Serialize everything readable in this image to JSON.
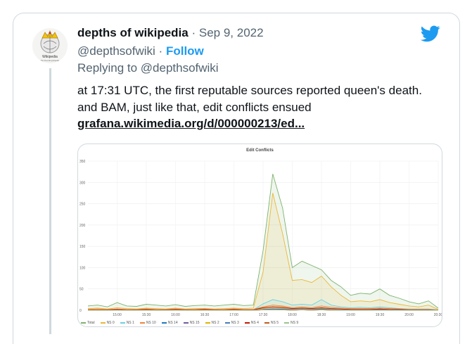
{
  "tweet": {
    "author_name": "depths of wikipedia",
    "date": "· Sep 9, 2022",
    "handle": "@depthsofwiki",
    "separator": "·",
    "follow_label": "Follow",
    "replying_to": "Replying to @depthsofwiki",
    "text": "at 17:31 UTC, the first reputable sources reported queen's death. and BAM, just like that, edit conflicts ensued",
    "link": "grafana.wikimedia.org/d/000000213/ed..."
  },
  "avatar": {
    "label": "Wikipedia",
    "sublabel": "The Free Encyclopedia"
  },
  "icons": {
    "brand": "twitter-bird-icon"
  },
  "colors": {
    "accent": "#1d9bf0",
    "total": "#7eb26d",
    "ns0": "#eab839",
    "ns1": "#6ed0e0",
    "ns10": "#ef843c",
    "ns14": "#1f78c1",
    "ns15": "#705da0",
    "ns2": "#e0b400",
    "ns3": "#447ebc",
    "ns4": "#bf1b00",
    "ns5": "#c15c17",
    "ns9": "#9ac48a"
  },
  "chart_data": {
    "type": "area",
    "title": "Edit Conflicts",
    "x_tick_labels": [
      "15:00",
      "15:30",
      "16:00",
      "16:30",
      "17:00",
      "17:30",
      "18:00",
      "18:30",
      "19:00",
      "19:30",
      "20:00",
      "20:30"
    ],
    "y_tick_labels": [
      "0",
      "50",
      "100",
      "150",
      "200",
      "250",
      "300",
      "350"
    ],
    "ylim": [
      0,
      350
    ],
    "x": [
      "14:30",
      "14:40",
      "14:50",
      "15:00",
      "15:10",
      "15:20",
      "15:30",
      "15:40",
      "15:50",
      "16:00",
      "16:10",
      "16:20",
      "16:30",
      "16:40",
      "16:50",
      "17:00",
      "17:10",
      "17:20",
      "17:30",
      "17:40",
      "17:50",
      "18:00",
      "18:10",
      "18:20",
      "18:30",
      "18:40",
      "18:50",
      "19:00",
      "19:10",
      "19:20",
      "19:30",
      "19:40",
      "19:50",
      "20:00",
      "20:10",
      "20:20",
      "20:30"
    ],
    "series": [
      {
        "name": "Total",
        "color": "#7eb26d",
        "values": [
          10,
          12,
          8,
          18,
          10,
          9,
          14,
          12,
          10,
          13,
          9,
          11,
          12,
          10,
          12,
          14,
          11,
          12,
          140,
          320,
          240,
          100,
          115,
          105,
          95,
          70,
          55,
          35,
          40,
          38,
          50,
          35,
          28,
          20,
          15,
          22,
          5
        ]
      },
      {
        "name": "NS 0",
        "color": "#eab839",
        "values": [
          4,
          5,
          3,
          6,
          4,
          3,
          5,
          4,
          3,
          5,
          3,
          4,
          4,
          3,
          4,
          5,
          4,
          5,
          90,
          275,
          180,
          70,
          72,
          65,
          80,
          55,
          35,
          20,
          22,
          20,
          25,
          18,
          14,
          10,
          8,
          12,
          2
        ]
      },
      {
        "name": "NS 1",
        "color": "#6ed0e0",
        "values": [
          1,
          1,
          1,
          2,
          1,
          1,
          2,
          1,
          1,
          2,
          1,
          1,
          2,
          1,
          1,
          2,
          1,
          1,
          15,
          25,
          20,
          12,
          14,
          12,
          25,
          12,
          8,
          6,
          7,
          6,
          8,
          6,
          4,
          3,
          3,
          3,
          1
        ]
      },
      {
        "name": "NS 10",
        "color": "#ef843c",
        "values": [
          2,
          3,
          2,
          3,
          2,
          2,
          3,
          2,
          2,
          3,
          2,
          2,
          3,
          2,
          2,
          3,
          2,
          2,
          8,
          12,
          10,
          6,
          8,
          6,
          10,
          7,
          5,
          4,
          4,
          4,
          5,
          4,
          3,
          2,
          2,
          2,
          1
        ]
      },
      {
        "name": "NS 14",
        "color": "#1f78c1",
        "values": [
          0,
          1,
          0,
          1,
          0,
          0,
          1,
          0,
          0,
          1,
          0,
          0,
          1,
          0,
          0,
          1,
          0,
          0,
          2,
          3,
          2,
          1,
          2,
          1,
          2,
          1,
          1,
          1,
          1,
          1,
          1,
          1,
          0,
          0,
          0,
          0,
          0
        ]
      },
      {
        "name": "NS 15",
        "color": "#705da0",
        "values": [
          0,
          0,
          0,
          0,
          0,
          0,
          0,
          0,
          0,
          0,
          0,
          0,
          0,
          0,
          0,
          0,
          0,
          0,
          1,
          1,
          1,
          0,
          1,
          0,
          1,
          0,
          0,
          0,
          0,
          0,
          0,
          0,
          0,
          0,
          0,
          0,
          0
        ]
      },
      {
        "name": "NS 2",
        "color": "#e0b400",
        "values": [
          1,
          1,
          1,
          1,
          1,
          1,
          1,
          1,
          1,
          1,
          1,
          1,
          1,
          1,
          1,
          1,
          1,
          1,
          5,
          8,
          6,
          4,
          5,
          4,
          5,
          4,
          3,
          2,
          2,
          2,
          3,
          2,
          2,
          1,
          1,
          1,
          0
        ]
      },
      {
        "name": "NS 3",
        "color": "#447ebc",
        "values": [
          0,
          0,
          0,
          1,
          0,
          0,
          1,
          0,
          0,
          1,
          0,
          0,
          1,
          0,
          0,
          1,
          0,
          0,
          2,
          3,
          3,
          2,
          2,
          2,
          3,
          2,
          1,
          1,
          1,
          1,
          2,
          1,
          1,
          1,
          1,
          1,
          0
        ]
      },
      {
        "name": "NS 4",
        "color": "#bf1b00",
        "values": [
          1,
          1,
          1,
          2,
          1,
          1,
          2,
          1,
          1,
          2,
          1,
          1,
          2,
          1,
          1,
          2,
          1,
          1,
          6,
          8,
          7,
          4,
          5,
          4,
          6,
          4,
          3,
          2,
          2,
          2,
          3,
          2,
          2,
          1,
          1,
          1,
          0
        ]
      },
      {
        "name": "NS 5",
        "color": "#c15c17",
        "values": [
          0,
          0,
          0,
          0,
          0,
          0,
          0,
          0,
          0,
          0,
          0,
          0,
          0,
          0,
          0,
          0,
          0,
          0,
          1,
          1,
          1,
          1,
          1,
          1,
          1,
          1,
          0,
          0,
          0,
          0,
          0,
          0,
          0,
          0,
          0,
          0,
          0
        ]
      },
      {
        "name": "NS 9",
        "color": "#9ac48a",
        "values": [
          0,
          0,
          0,
          0,
          0,
          0,
          0,
          0,
          0,
          0,
          0,
          0,
          0,
          0,
          0,
          0,
          0,
          0,
          1,
          1,
          1,
          0,
          1,
          0,
          1,
          0,
          0,
          0,
          0,
          0,
          0,
          0,
          0,
          0,
          0,
          0,
          0
        ]
      }
    ],
    "grid": true,
    "legend_placement": "bottom"
  }
}
